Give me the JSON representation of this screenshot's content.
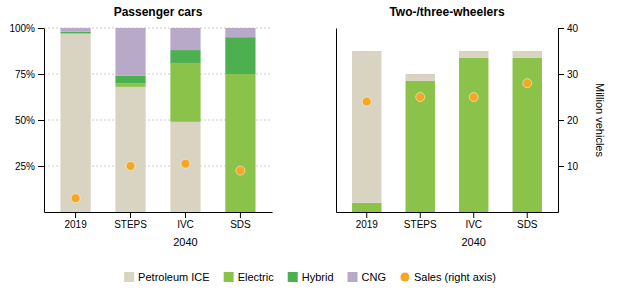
{
  "chart_data": [
    {
      "type": "bar",
      "stacked": true,
      "title": "Passenger cars",
      "categories": [
        "2019",
        "STEPS",
        "IVC",
        "SDS"
      ],
      "series": [
        {
          "name": "Petroleum ICE",
          "color": "#d9d3c2",
          "values": [
            0.97,
            0.68,
            0.49,
            0.0
          ]
        },
        {
          "name": "Electric",
          "color": "#8bc34a",
          "values": [
            0.0,
            0.02,
            0.32,
            0.75
          ]
        },
        {
          "name": "Hybrid",
          "color": "#4caf50",
          "values": [
            0.01,
            0.04,
            0.07,
            0.2
          ]
        },
        {
          "name": "CNG",
          "color": "#b8a9c9",
          "values": [
            0.02,
            0.26,
            0.12,
            0.05
          ]
        },
        {
          "name": "Sales (right axis)",
          "type": "scatter",
          "axis": "y2",
          "color": "#f5a623",
          "marker": "circle",
          "values": [
            3.0,
            10.0,
            10.5,
            9.0
          ]
        }
      ],
      "ylim": [
        0,
        1.0
      ],
      "yticks": [
        {
          "value": 0.25,
          "label": "25%"
        },
        {
          "value": 0.5,
          "label": "50%"
        },
        {
          "value": 0.75,
          "label": "75%"
        },
        {
          "value": 1.0,
          "label": "100%"
        }
      ],
      "y2lim": [
        0,
        40
      ],
      "grid": true,
      "legend": "bottom",
      "annotations": [
        {
          "text": "2040",
          "x": "IVC"
        }
      ]
    },
    {
      "type": "bar",
      "stacked": true,
      "title": "Two-/three-wheelers",
      "categories": [
        "2019",
        "STEPS",
        "IVC",
        "SDS"
      ],
      "series": [
        {
          "name": "Electric",
          "color": "#8bc34a",
          "values": [
            2.0,
            28.5,
            33.5,
            33.5
          ]
        },
        {
          "name": "Petroleum ICE",
          "color": "#d9d3c2",
          "values": [
            33.0,
            1.5,
            1.5,
            1.5
          ]
        },
        {
          "name": "Sales (right axis)",
          "type": "scatter",
          "axis": "y2",
          "color": "#f5a623",
          "marker": "circle",
          "values": [
            24.0,
            25.0,
            25.0,
            28.0
          ]
        }
      ],
      "ylim": [
        0,
        40
      ],
      "y2lim": [
        0,
        40
      ],
      "y2ticks": [
        10,
        20,
        30,
        40
      ],
      "y2label": "Million vehicles",
      "grid": false,
      "annotations": [
        {
          "text": "2040",
          "x": "IVC"
        }
      ]
    }
  ]
}
